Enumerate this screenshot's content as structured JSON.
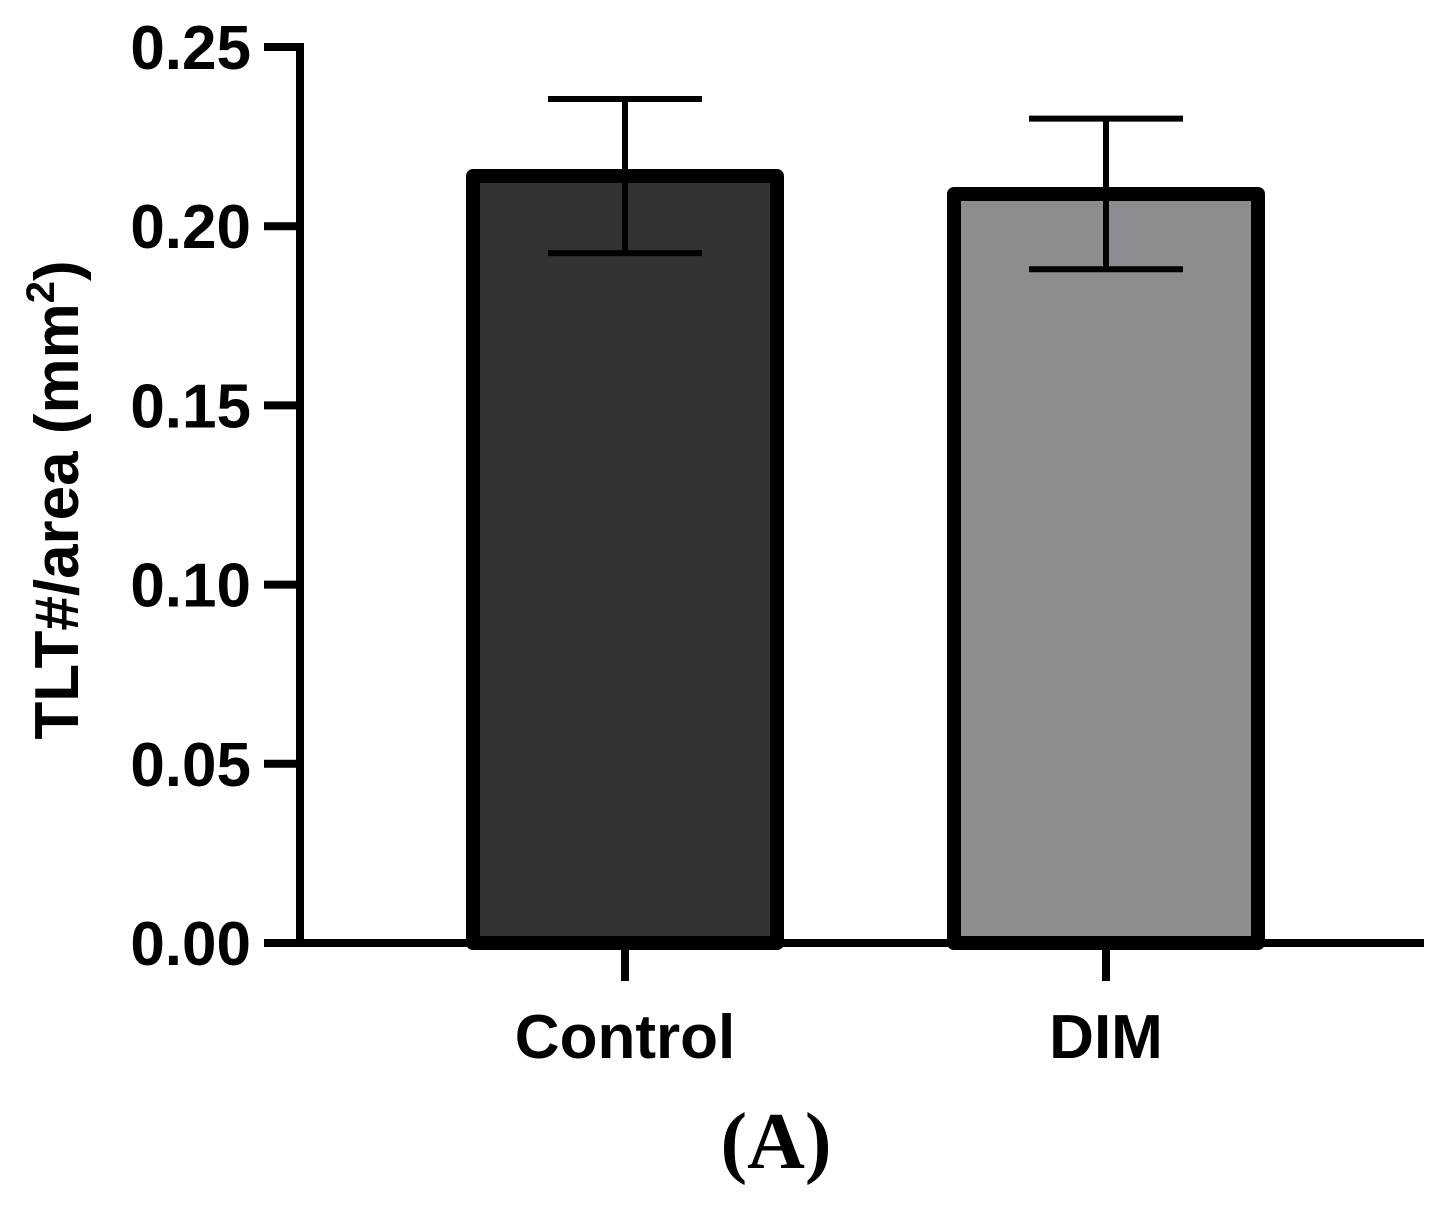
{
  "panel_label": "(A)",
  "colors": {
    "axis": "#000000",
    "bar_outline": "#000000",
    "control_fill": "#333333",
    "dim_fill": "#8c8d90",
    "background": "#ffffff"
  },
  "chart_data": {
    "type": "bar",
    "title": "",
    "xlabel": "",
    "ylabel": "TLT#/area (mm²)",
    "ylabel_main": "TLT#/area (mm",
    "ylabel_sup": "2",
    "ylabel_close": ")",
    "ylim": [
      0,
      0.25
    ],
    "yticks": [
      0.0,
      0.05,
      0.1,
      0.15,
      0.2,
      0.25
    ],
    "ytick_labels": [
      "0.00",
      "0.05",
      "0.10",
      "0.15",
      "0.20",
      "0.25"
    ],
    "categories": [
      "Control",
      "DIM"
    ],
    "values": [
      0.214,
      0.209
    ],
    "errors": [
      0.0215,
      0.021
    ],
    "grid": false,
    "legend": "none"
  }
}
